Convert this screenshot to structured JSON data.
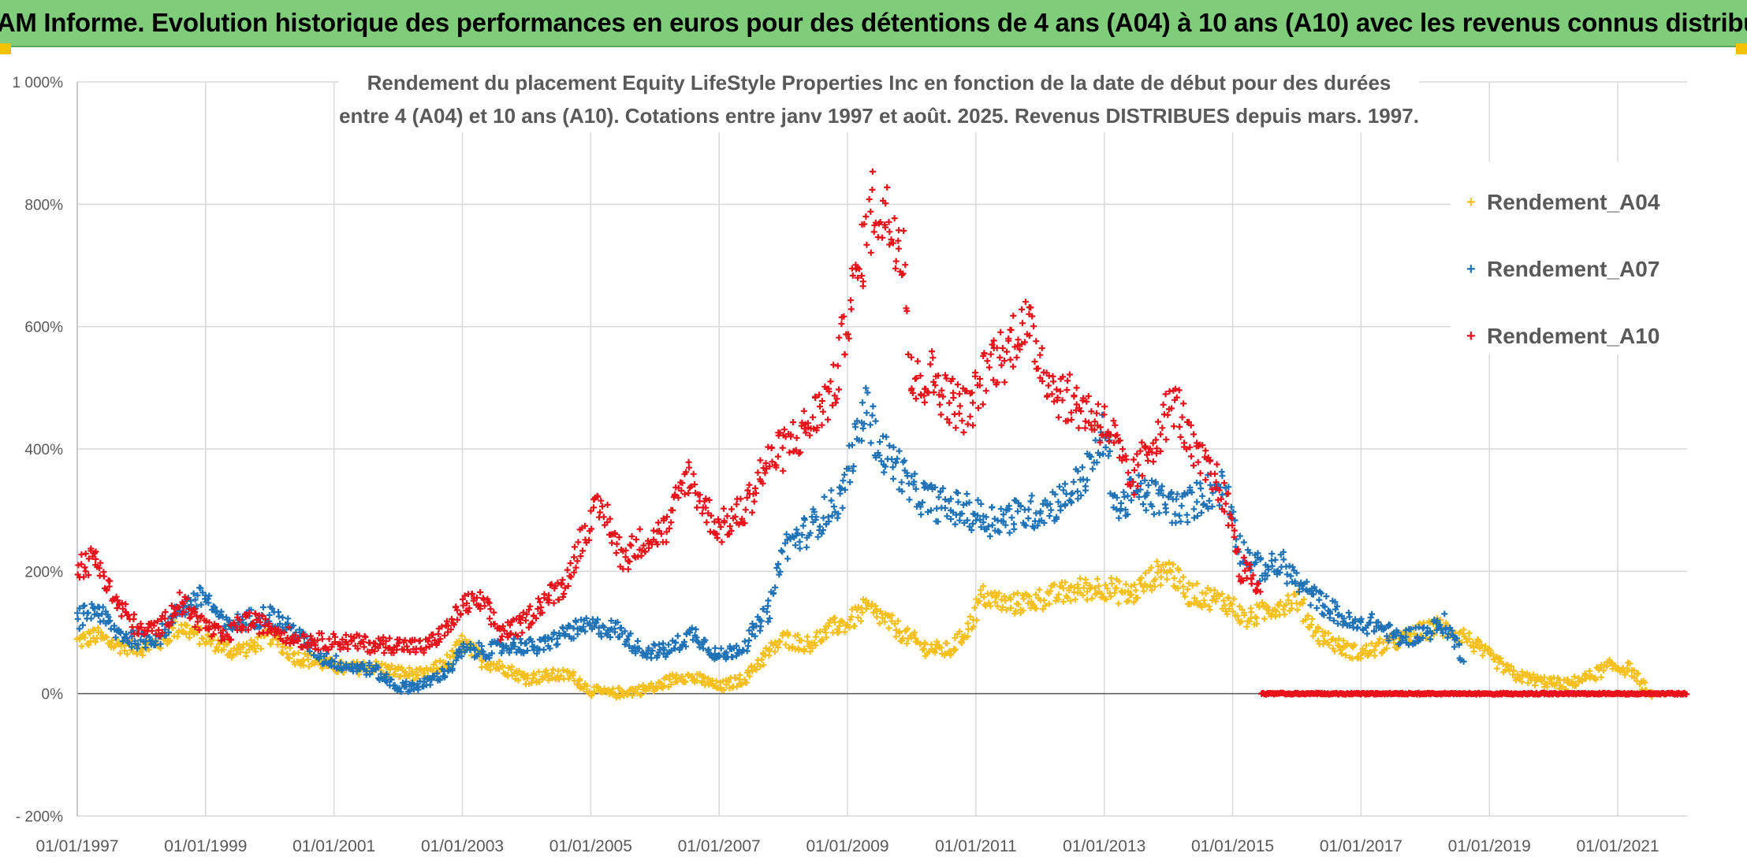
{
  "banner": {
    "text": "ADAM Informe. Evolution historique des performances en euros pour des détentions de 4 ans (A04) à 10 ans (A10) avec les revenus connus distribués"
  },
  "chart_data": {
    "type": "scatter",
    "title_line1": "Rendement du placement Equity LifeStyle Properties Inc en fonction de la date de début pour des durées",
    "title_line2": "entre 4 (A04) et 10 ans (A10). Cotations entre janv 1997 et août. 2025. Revenus DISTRIBUES depuis mars. 1997.",
    "xlim": [
      1997.0,
      2022.08
    ],
    "ylim": [
      -200,
      1000
    ],
    "y_ticks": [
      -200,
      0,
      200,
      400,
      600,
      800,
      1000
    ],
    "y_tick_labels": [
      "- 200%",
      "0%",
      "200%",
      "400%",
      "600%",
      "800%",
      "1 000%"
    ],
    "x_ticks": [
      1997,
      1999,
      2001,
      2003,
      2005,
      2007,
      2009,
      2011,
      2013,
      2015,
      2017,
      2019,
      2021
    ],
    "x_tick_labels": [
      "01/01/1997",
      "01/01/1999",
      "01/01/2001",
      "01/01/2003",
      "01/01/2005",
      "01/01/2007",
      "01/01/2009",
      "01/01/2011",
      "01/01/2013",
      "01/01/2015",
      "01/01/2017",
      "01/01/2019",
      "01/01/2021"
    ],
    "grid": true,
    "legend_position": "right",
    "series": [
      {
        "name": "Rendement_A04",
        "color": "#f5c01e",
        "x_end": 2021.55,
        "points": [
          [
            1997.0,
            85
          ],
          [
            1997.3,
            95
          ],
          [
            1997.6,
            80
          ],
          [
            1998.0,
            75
          ],
          [
            1998.3,
            85
          ],
          [
            1998.6,
            110
          ],
          [
            1999.0,
            90
          ],
          [
            1999.4,
            70
          ],
          [
            1999.7,
            75
          ],
          [
            2000.0,
            95
          ],
          [
            2000.4,
            60
          ],
          [
            2000.8,
            50
          ],
          [
            2001.2,
            40
          ],
          [
            2001.6,
            45
          ],
          [
            2002.0,
            35
          ],
          [
            2002.4,
            30
          ],
          [
            2002.8,
            55
          ],
          [
            2003.0,
            85
          ],
          [
            2003.3,
            55
          ],
          [
            2003.7,
            40
          ],
          [
            2004.0,
            25
          ],
          [
            2004.4,
            30
          ],
          [
            2004.7,
            30
          ],
          [
            2005.0,
            5
          ],
          [
            2005.3,
            0
          ],
          [
            2005.7,
            5
          ],
          [
            2006.0,
            10
          ],
          [
            2006.4,
            30
          ],
          [
            2006.8,
            20
          ],
          [
            2007.0,
            10
          ],
          [
            2007.4,
            25
          ],
          [
            2007.7,
            60
          ],
          [
            2008.0,
            90
          ],
          [
            2008.4,
            80
          ],
          [
            2008.8,
            110
          ],
          [
            2009.0,
            115
          ],
          [
            2009.3,
            140
          ],
          [
            2009.6,
            120
          ],
          [
            2009.9,
            95
          ],
          [
            2010.2,
            75
          ],
          [
            2010.6,
            70
          ],
          [
            2010.9,
            110
          ],
          [
            2011.1,
            160
          ],
          [
            2011.5,
            145
          ],
          [
            2011.8,
            150
          ],
          [
            2012.2,
            160
          ],
          [
            2012.6,
            170
          ],
          [
            2013.0,
            175
          ],
          [
            2013.4,
            160
          ],
          [
            2013.8,
            195
          ],
          [
            2014.0,
            205
          ],
          [
            2014.3,
            165
          ],
          [
            2014.7,
            155
          ],
          [
            2015.0,
            145
          ],
          [
            2015.2,
            120
          ],
          [
            2015.6,
            140
          ],
          [
            2016.0,
            155
          ],
          [
            2016.3,
            100
          ],
          [
            2016.7,
            75
          ],
          [
            2017.0,
            65
          ],
          [
            2017.4,
            80
          ],
          [
            2017.8,
            95
          ],
          [
            2018.2,
            110
          ],
          [
            2018.6,
            95
          ],
          [
            2019.0,
            60
          ],
          [
            2019.4,
            30
          ],
          [
            2019.8,
            20
          ],
          [
            2020.2,
            15
          ],
          [
            2020.6,
            30
          ],
          [
            2020.9,
            45
          ],
          [
            2021.2,
            40
          ],
          [
            2021.55,
            -10
          ]
        ]
      },
      {
        "name": "Rendement_A07",
        "color": "#1f72b6",
        "x_end": 2018.6,
        "points": [
          [
            1997.0,
            120
          ],
          [
            1997.3,
            140
          ],
          [
            1997.6,
            100
          ],
          [
            1998.0,
            85
          ],
          [
            1998.3,
            95
          ],
          [
            1998.6,
            140
          ],
          [
            1999.0,
            160
          ],
          [
            1999.3,
            110
          ],
          [
            1999.6,
            120
          ],
          [
            2000.0,
            130
          ],
          [
            2000.4,
            100
          ],
          [
            2000.8,
            60
          ],
          [
            2001.2,
            45
          ],
          [
            2001.6,
            40
          ],
          [
            2002.0,
            10
          ],
          [
            2002.4,
            15
          ],
          [
            2002.8,
            40
          ],
          [
            2003.0,
            70
          ],
          [
            2003.4,
            70
          ],
          [
            2003.8,
            80
          ],
          [
            2004.2,
            75
          ],
          [
            2004.6,
            100
          ],
          [
            2005.0,
            110
          ],
          [
            2005.4,
            105
          ],
          [
            2005.8,
            70
          ],
          [
            2006.2,
            70
          ],
          [
            2006.6,
            100
          ],
          [
            2007.0,
            60
          ],
          [
            2007.4,
            80
          ],
          [
            2007.8,
            140
          ],
          [
            2008.0,
            240
          ],
          [
            2008.3,
            260
          ],
          [
            2008.6,
            290
          ],
          [
            2008.9,
            320
          ],
          [
            2009.1,
            400
          ],
          [
            2009.3,
            470
          ],
          [
            2009.5,
            400
          ],
          [
            2009.8,
            370
          ],
          [
            2010.0,
            330
          ],
          [
            2010.4,
            310
          ],
          [
            2010.8,
            300
          ],
          [
            2011.2,
            285
          ],
          [
            2011.6,
            290
          ],
          [
            2012.0,
            300
          ],
          [
            2012.4,
            320
          ],
          [
            2012.8,
            370
          ],
          [
            2013.0,
            430
          ],
          [
            2013.2,
            300
          ],
          [
            2013.5,
            330
          ],
          [
            2013.8,
            320
          ],
          [
            2014.2,
            300
          ],
          [
            2014.6,
            330
          ],
          [
            2014.9,
            340
          ],
          [
            2015.1,
            240
          ],
          [
            2015.4,
            205
          ],
          [
            2015.8,
            210
          ],
          [
            2016.1,
            170
          ],
          [
            2016.5,
            140
          ],
          [
            2016.9,
            110
          ],
          [
            2017.2,
            115
          ],
          [
            2017.6,
            90
          ],
          [
            2018.0,
            100
          ],
          [
            2018.3,
            115
          ],
          [
            2018.6,
            60
          ]
        ]
      },
      {
        "name": "Rendement_A10",
        "color": "#e8121a",
        "x_end": 2022.08,
        "zero_from": 2015.45,
        "points": [
          [
            1997.0,
            210
          ],
          [
            1997.3,
            220
          ],
          [
            1997.6,
            150
          ],
          [
            1998.0,
            100
          ],
          [
            1998.3,
            110
          ],
          [
            1998.6,
            150
          ],
          [
            1999.0,
            110
          ],
          [
            1999.3,
            90
          ],
          [
            1999.6,
            120
          ],
          [
            2000.0,
            110
          ],
          [
            2000.4,
            90
          ],
          [
            2000.8,
            85
          ],
          [
            2001.2,
            85
          ],
          [
            2001.6,
            80
          ],
          [
            2002.0,
            80
          ],
          [
            2002.4,
            75
          ],
          [
            2002.8,
            110
          ],
          [
            2003.0,
            145
          ],
          [
            2003.3,
            150
          ],
          [
            2003.6,
            100
          ],
          [
            2003.9,
            110
          ],
          [
            2004.2,
            145
          ],
          [
            2004.6,
            180
          ],
          [
            2005.0,
            290
          ],
          [
            2005.2,
            300
          ],
          [
            2005.5,
            220
          ],
          [
            2005.8,
            250
          ],
          [
            2006.2,
            270
          ],
          [
            2006.5,
            360
          ],
          [
            2006.8,
            300
          ],
          [
            2007.0,
            270
          ],
          [
            2007.4,
            300
          ],
          [
            2007.7,
            370
          ],
          [
            2008.0,
            400
          ],
          [
            2008.4,
            440
          ],
          [
            2008.8,
            500
          ],
          [
            2009.0,
            620
          ],
          [
            2009.2,
            700
          ],
          [
            2009.4,
            800
          ],
          [
            2009.6,
            780
          ],
          [
            2009.9,
            730
          ],
          [
            2010.0,
            500
          ],
          [
            2010.3,
            520
          ],
          [
            2010.6,
            480
          ],
          [
            2010.9,
            460
          ],
          [
            2011.2,
            540
          ],
          [
            2011.5,
            560
          ],
          [
            2011.7,
            610
          ],
          [
            2011.9,
            580
          ],
          [
            2012.2,
            500
          ],
          [
            2012.6,
            470
          ],
          [
            2012.9,
            450
          ],
          [
            2013.1,
            430
          ],
          [
            2013.4,
            340
          ],
          [
            2013.8,
            420
          ],
          [
            2014.1,
            480
          ],
          [
            2014.4,
            390
          ],
          [
            2014.8,
            340
          ],
          [
            2015.0,
            280
          ],
          [
            2015.1,
            210
          ],
          [
            2015.45,
            170
          ]
        ]
      }
    ]
  }
}
